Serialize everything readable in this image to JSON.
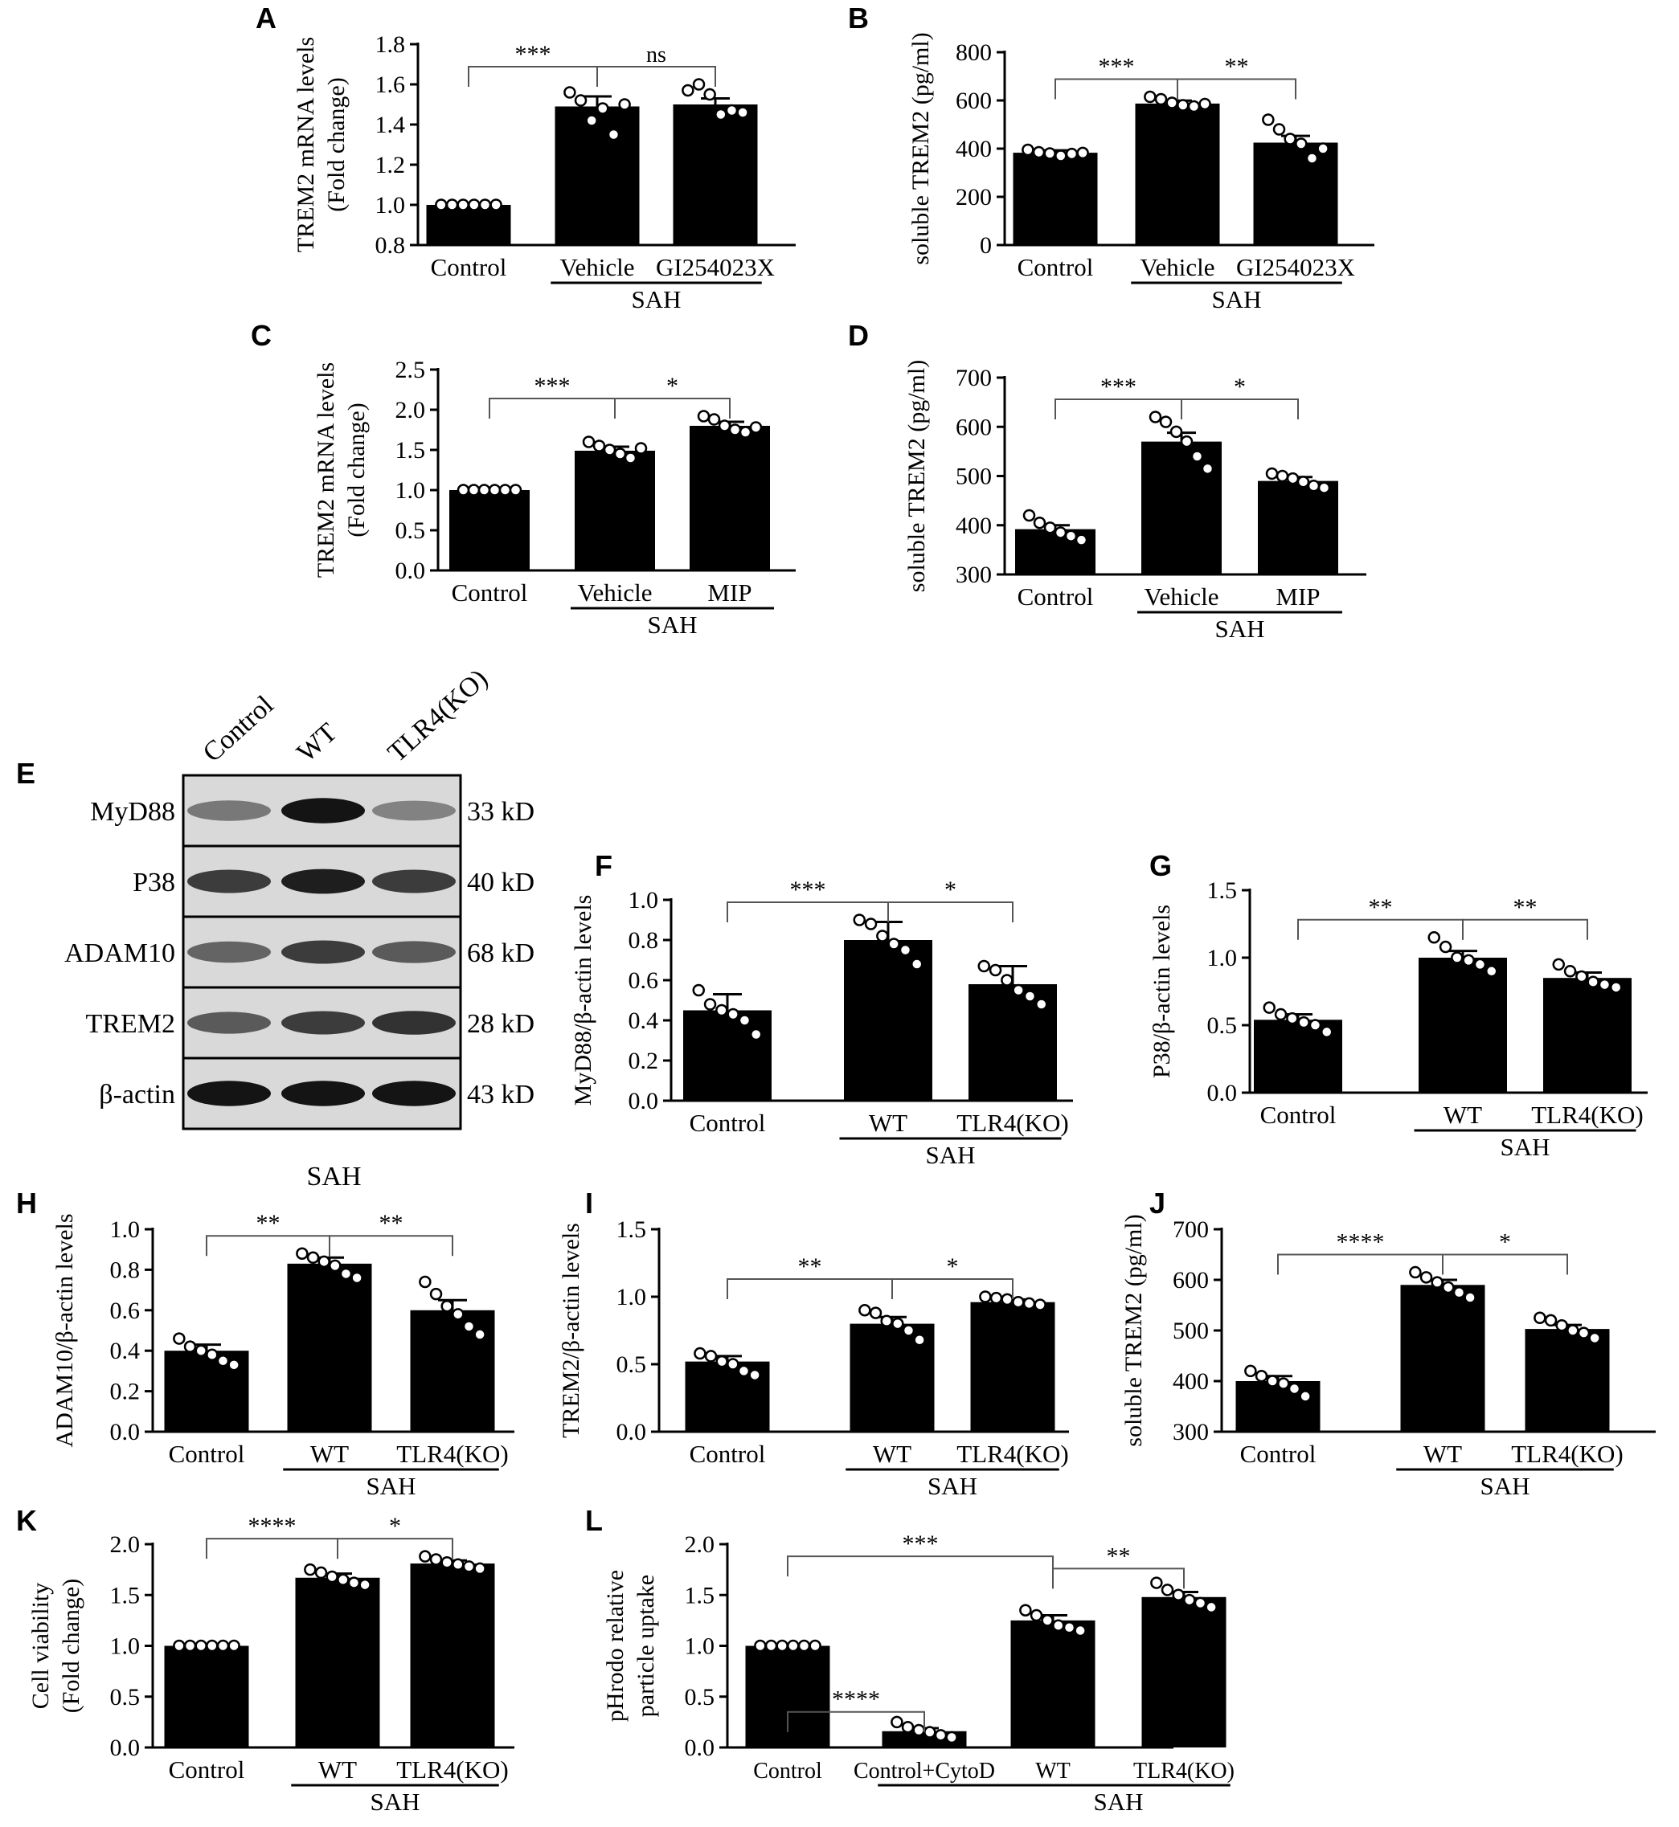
{
  "chart_data": [
    {
      "panel": "A",
      "type": "bar",
      "categories": [
        "Control",
        "Vehicle",
        "GI254023X"
      ],
      "group_label": "SAH",
      "values": [
        1.0,
        1.49,
        1.5
      ],
      "errors": [
        0.0,
        0.05,
        0.03
      ],
      "points": [
        [
          1,
          1,
          1,
          1,
          1,
          1
        ],
        [
          1.56,
          1.52,
          1.42,
          1.48,
          1.35,
          1.5
        ],
        [
          1.57,
          1.6,
          1.55,
          1.45,
          1.47,
          1.46
        ]
      ],
      "ylabel": [
        "TREM2 mRNA levels",
        "(Fold change)"
      ],
      "ylim": [
        0.8,
        1.8
      ],
      "yticks": [
        "0.8",
        "1.0",
        "1.2",
        "1.4",
        "1.6",
        "1.8"
      ],
      "brackets": [
        {
          "from": 0,
          "to": 1,
          "label": "***"
        },
        {
          "from": 1,
          "to": 2,
          "label": "ns"
        }
      ]
    },
    {
      "panel": "B",
      "type": "bar",
      "categories": [
        "Control",
        "Vehicle",
        "GI254023X"
      ],
      "group_label": "SAH",
      "values": [
        383,
        587,
        425
      ],
      "errors": [
        10,
        12,
        28
      ],
      "points": [
        [
          395,
          385,
          380,
          370,
          378,
          382
        ],
        [
          615,
          605,
          590,
          580,
          575,
          585
        ],
        [
          520,
          480,
          440,
          420,
          360,
          400
        ]
      ],
      "ylabel": [
        "soluble TREM2 (pg/ml)"
      ],
      "ylim": [
        0,
        800
      ],
      "yticks": [
        "0",
        "200",
        "400",
        "600",
        "800"
      ],
      "brackets": [
        {
          "from": 0,
          "to": 1,
          "label": "***"
        },
        {
          "from": 1,
          "to": 2,
          "label": "**"
        }
      ]
    },
    {
      "panel": "C",
      "type": "bar",
      "categories": [
        "Control",
        "Vehicle",
        "MIP"
      ],
      "group_label": "SAH",
      "values": [
        1.0,
        1.49,
        1.8
      ],
      "errors": [
        0.0,
        0.05,
        0.05
      ],
      "points": [
        [
          1,
          1,
          1,
          1,
          1,
          1
        ],
        [
          1.6,
          1.55,
          1.5,
          1.45,
          1.4,
          1.52
        ],
        [
          1.92,
          1.88,
          1.8,
          1.75,
          1.72,
          1.78
        ]
      ],
      "ylabel": [
        "TREM2 mRNA levels",
        "(Fold change)"
      ],
      "ylim": [
        0.0,
        2.5
      ],
      "yticks": [
        "0.0",
        "0.5",
        "1.0",
        "1.5",
        "2.0",
        "2.5"
      ],
      "brackets": [
        {
          "from": 0,
          "to": 1,
          "label": "***"
        },
        {
          "from": 1,
          "to": 2,
          "label": "*"
        }
      ]
    },
    {
      "panel": "D",
      "type": "bar",
      "categories": [
        "Control",
        "Vehicle",
        "MIP"
      ],
      "group_label": "SAH",
      "values": [
        392,
        570,
        490
      ],
      "errors": [
        8,
        18,
        8
      ],
      "points": [
        [
          420,
          405,
          395,
          385,
          378,
          370
        ],
        [
          620,
          610,
          590,
          570,
          540,
          515
        ],
        [
          505,
          500,
          495,
          488,
          480,
          476
        ]
      ],
      "ylabel": [
        "soluble TREM2 (pg/ml)"
      ],
      "ylim": [
        300,
        700
      ],
      "yticks": [
        "300",
        "400",
        "500",
        "600",
        "700"
      ],
      "brackets": [
        {
          "from": 0,
          "to": 1,
          "label": "***"
        },
        {
          "from": 1,
          "to": 2,
          "label": "*"
        }
      ]
    },
    {
      "panel": "F",
      "type": "bar",
      "categories": [
        "Control",
        "WT",
        "TLR4(KO)"
      ],
      "group_label": "SAH",
      "values": [
        0.45,
        0.8,
        0.58
      ],
      "errors": [
        0.08,
        0.09,
        0.09
      ],
      "points": [
        [
          0.55,
          0.48,
          0.45,
          0.43,
          0.4,
          0.33
        ],
        [
          0.9,
          0.88,
          0.82,
          0.78,
          0.75,
          0.68
        ],
        [
          0.67,
          0.65,
          0.6,
          0.55,
          0.52,
          0.48
        ]
      ],
      "ylabel": [
        "MyD88/β-actin levels"
      ],
      "ylim": [
        0.0,
        1.0
      ],
      "yticks": [
        "0.0",
        "0.2",
        "0.4",
        "0.6",
        "0.8",
        "1.0"
      ],
      "brackets": [
        {
          "from": 0,
          "to": 1,
          "label": "***"
        },
        {
          "from": 1,
          "to": 2,
          "label": "*"
        }
      ]
    },
    {
      "panel": "G",
      "type": "bar",
      "categories": [
        "Control",
        "WT",
        "TLR4(KO)"
      ],
      "group_label": "SAH",
      "values": [
        0.54,
        1.0,
        0.85
      ],
      "errors": [
        0.04,
        0.05,
        0.04
      ],
      "points": [
        [
          0.63,
          0.58,
          0.55,
          0.52,
          0.5,
          0.45
        ],
        [
          1.15,
          1.08,
          1.0,
          0.98,
          0.95,
          0.9
        ],
        [
          0.95,
          0.9,
          0.86,
          0.82,
          0.8,
          0.78
        ]
      ],
      "ylabel": [
        "P38/β-actin levels"
      ],
      "ylim": [
        0.0,
        1.5
      ],
      "yticks": [
        "0.0",
        "0.5",
        "1.0",
        "1.5"
      ],
      "brackets": [
        {
          "from": 0,
          "to": 1,
          "label": "**"
        },
        {
          "from": 1,
          "to": 2,
          "label": "**"
        }
      ]
    },
    {
      "panel": "H",
      "type": "bar",
      "categories": [
        "Control",
        "WT",
        "TLR4(KO)"
      ],
      "group_label": "SAH",
      "values": [
        0.4,
        0.83,
        0.6
      ],
      "errors": [
        0.03,
        0.03,
        0.05
      ],
      "points": [
        [
          0.46,
          0.42,
          0.4,
          0.38,
          0.35,
          0.33
        ],
        [
          0.88,
          0.86,
          0.84,
          0.82,
          0.78,
          0.76
        ],
        [
          0.74,
          0.68,
          0.62,
          0.58,
          0.52,
          0.48
        ]
      ],
      "ylabel": [
        "ADAM10/β-actin levels"
      ],
      "ylim": [
        0.0,
        1.0
      ],
      "yticks": [
        "0.0",
        "0.2",
        "0.4",
        "0.6",
        "0.8",
        "1.0"
      ],
      "brackets": [
        {
          "from": 0,
          "to": 1,
          "label": "**"
        },
        {
          "from": 1,
          "to": 2,
          "label": "**"
        }
      ]
    },
    {
      "panel": "I",
      "type": "bar",
      "categories": [
        "Control",
        "WT",
        "TLR4(KO)"
      ],
      "group_label": "SAH",
      "values": [
        0.52,
        0.8,
        0.96
      ],
      "errors": [
        0.04,
        0.05,
        0.02
      ],
      "points": [
        [
          0.58,
          0.56,
          0.52,
          0.5,
          0.45,
          0.42
        ],
        [
          0.9,
          0.88,
          0.82,
          0.8,
          0.75,
          0.68
        ],
        [
          1.0,
          0.99,
          0.98,
          0.96,
          0.95,
          0.94
        ]
      ],
      "ylabel": [
        "TREM2/β-actin levels"
      ],
      "ylim": [
        0.0,
        1.5
      ],
      "yticks": [
        "0.0",
        "0.5",
        "1.0",
        "1.5"
      ],
      "brackets": [
        {
          "from": 0,
          "to": 1,
          "label": "**"
        },
        {
          "from": 1,
          "to": 2,
          "label": "*"
        }
      ]
    },
    {
      "panel": "J",
      "type": "bar",
      "categories": [
        "Control",
        "WT",
        "TLR4(KO)"
      ],
      "group_label": "SAH",
      "values": [
        400,
        590,
        503
      ],
      "errors": [
        10,
        10,
        8
      ],
      "points": [
        [
          420,
          410,
          400,
          395,
          385,
          370
        ],
        [
          615,
          605,
          595,
          585,
          575,
          565
        ],
        [
          525,
          520,
          510,
          500,
          495,
          485
        ]
      ],
      "ylabel": [
        "soluble TREM2 (pg/ml)"
      ],
      "ylim": [
        300,
        700
      ],
      "yticks": [
        "300",
        "400",
        "500",
        "600",
        "700"
      ],
      "brackets": [
        {
          "from": 0,
          "to": 1,
          "label": "****"
        },
        {
          "from": 1,
          "to": 2,
          "label": "*"
        }
      ]
    },
    {
      "panel": "K",
      "type": "bar",
      "categories": [
        "Control",
        "WT",
        "TLR4(KO)"
      ],
      "group_label": "SAH",
      "values": [
        1.0,
        1.67,
        1.81
      ],
      "errors": [
        0.0,
        0.04,
        0.03
      ],
      "points": [
        [
          1,
          1,
          1,
          1,
          1,
          1
        ],
        [
          1.75,
          1.72,
          1.68,
          1.65,
          1.62,
          1.6
        ],
        [
          1.88,
          1.85,
          1.82,
          1.8,
          1.78,
          1.76
        ]
      ],
      "ylabel": [
        "Cell viability",
        "(Fold change)"
      ],
      "ylim": [
        0.0,
        2.0
      ],
      "yticks": [
        "0.0",
        "0.5",
        "1.0",
        "1.5",
        "2.0"
      ],
      "brackets": [
        {
          "from": 0,
          "to": 1,
          "label": "****"
        },
        {
          "from": 1,
          "to": 2,
          "label": "*"
        }
      ]
    },
    {
      "panel": "L",
      "type": "bar",
      "categories": [
        "Control",
        "Control+CytoD",
        "WT",
        "TLR4(KO)"
      ],
      "group_label": "SAH",
      "values": [
        1.0,
        0.16,
        1.25,
        1.48
      ],
      "errors": [
        0.0,
        0.03,
        0.05,
        0.05
      ],
      "points": [
        [
          1,
          1,
          1,
          1,
          1,
          1
        ],
        [
          0.25,
          0.2,
          0.17,
          0.15,
          0.12,
          0.1
        ],
        [
          1.35,
          1.3,
          1.25,
          1.2,
          1.18,
          1.15
        ],
        [
          1.62,
          1.55,
          1.5,
          1.45,
          1.42,
          1.38
        ]
      ],
      "ylabel": [
        "pHrodo relative",
        "particle uptake"
      ],
      "ylim": [
        0.0,
        2.0
      ],
      "yticks": [
        "0.0",
        "0.5",
        "1.0",
        "1.5",
        "2.0"
      ],
      "brackets": [
        {
          "from": 0,
          "to": 1,
          "label": "****"
        },
        {
          "from": 0,
          "to": 2,
          "label": "***"
        },
        {
          "from": 2,
          "to": 3,
          "label": "**"
        }
      ]
    }
  ],
  "blot": {
    "panel": "E",
    "lanes": [
      "Control",
      "WT",
      "TLR4(KO)"
    ],
    "rows": [
      {
        "protein": "MyD88",
        "size": "33 kD",
        "intensity": [
          0.45,
          0.95,
          0.4
        ]
      },
      {
        "protein": "P38",
        "size": "40 kD",
        "intensity": [
          0.75,
          0.9,
          0.75
        ]
      },
      {
        "protein": "ADAM10",
        "size": "68 kD",
        "intensity": [
          0.55,
          0.75,
          0.6
        ]
      },
      {
        "protein": "TREM2",
        "size": "28 kD",
        "intensity": [
          0.6,
          0.75,
          0.8
        ]
      },
      {
        "protein": "β-actin",
        "size": "43 kD",
        "intensity": [
          0.95,
          0.95,
          0.95
        ]
      }
    ],
    "caption": "SAH"
  }
}
